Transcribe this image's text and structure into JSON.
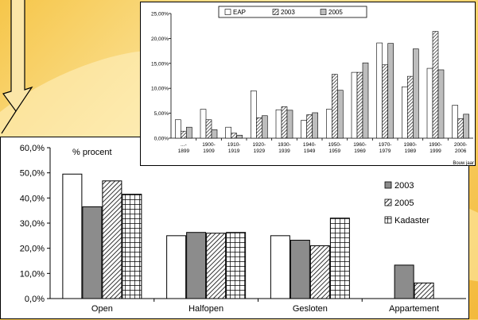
{
  "chart_data": [
    {
      "type": "bar",
      "title": "% procent",
      "categories": [
        "Open",
        "Halfopen",
        "Gesloten",
        "Appartement"
      ],
      "ylim": [
        0,
        60
      ],
      "yticks": [
        "0,0%",
        "10,0%",
        "20,0%",
        "30,0%",
        "40,0%",
        "50,0%",
        "60,0%"
      ],
      "series": [
        {
          "name": "",
          "pattern": "white",
          "values": [
            49.5,
            25,
            25,
            0
          ]
        },
        {
          "name": "2003",
          "pattern": "grey",
          "values": [
            36.5,
            26.3,
            23.2,
            13.3
          ]
        },
        {
          "name": "2005",
          "pattern": "hatch",
          "values": [
            46.8,
            26,
            21,
            6.2
          ]
        },
        {
          "name": "Kadaster",
          "pattern": "grid",
          "values": [
            41.5,
            26.3,
            32,
            0
          ]
        }
      ],
      "legend": "right"
    },
    {
      "type": "bar",
      "categories": [
        "...-1899",
        "1900-1909",
        "1910-1919",
        "1920-1929",
        "1930-1939",
        "1940-1949",
        "1950-1959",
        "1960-1969",
        "1970-1979",
        "1980-1989",
        "1990-1999",
        "2000-2006"
      ],
      "xlabel": "Bouw jaar",
      "ylim": [
        0,
        25
      ],
      "yticks": [
        "0,00%",
        "5,00%",
        "10,00%",
        "15,00%",
        "20,00%",
        "25,00%"
      ],
      "series": [
        {
          "name": "EAP",
          "pattern": "white",
          "values": [
            3.7,
            5.8,
            2.2,
            9.5,
            5.7,
            3.6,
            5.8,
            13.2,
            19.1,
            10.3,
            14.0,
            6.6
          ]
        },
        {
          "name": "2003",
          "pattern": "hatch",
          "values": [
            1.4,
            3.7,
            1.0,
            4.1,
            6.3,
            4.7,
            12.8,
            13.2,
            14.7,
            12.4,
            21.4,
            3.9
          ]
        },
        {
          "name": "2005",
          "pattern": "grey",
          "values": [
            2.2,
            1.7,
            0.6,
            4.5,
            5.6,
            5.1,
            9.6,
            15.1,
            19.0,
            17.9,
            13.7,
            4.8
          ]
        }
      ],
      "legend": "top"
    }
  ]
}
